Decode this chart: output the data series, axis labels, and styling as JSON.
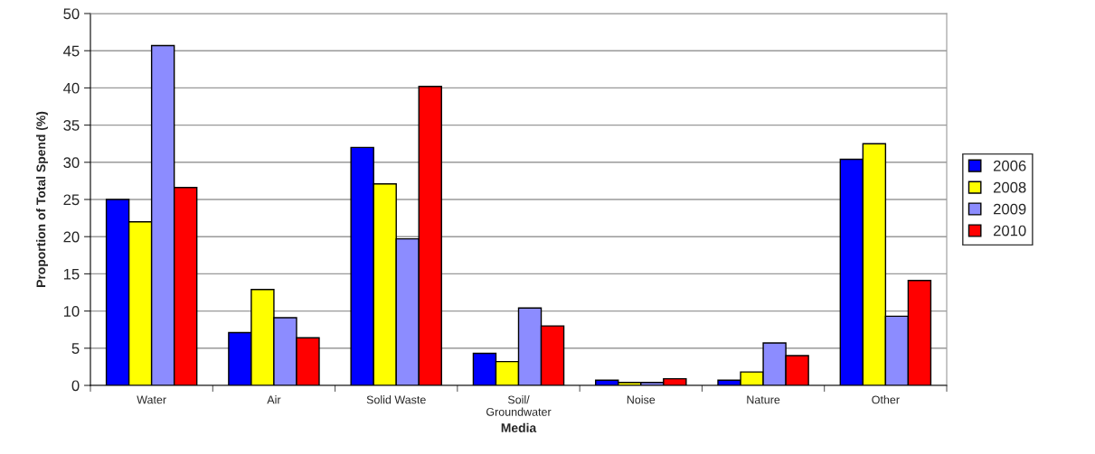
{
  "chart_data": {
    "type": "bar",
    "xlabel": "Media",
    "ylabel": "Proportion of Total Spend (%)",
    "categories": [
      "Water",
      "Air",
      "Solid Waste",
      "Soil/\nGroundwater",
      "Noise",
      "Nature",
      "Other"
    ],
    "series": [
      {
        "name": "2006",
        "color": "#0000ff",
        "values": [
          25,
          7.1,
          32,
          4.3,
          0.7,
          0.7,
          30.4
        ]
      },
      {
        "name": "2008",
        "color": "#ffff00",
        "values": [
          22,
          12.9,
          27.1,
          3.2,
          0.4,
          1.8,
          32.5
        ]
      },
      {
        "name": "2009",
        "color": "#8c8cff",
        "values": [
          45.7,
          9.1,
          19.7,
          10.4,
          0.4,
          5.7,
          9.3
        ]
      },
      {
        "name": "2010",
        "color": "#ff0000",
        "values": [
          26.6,
          6.4,
          40.2,
          8.0,
          0.9,
          4.0,
          14.1
        ]
      }
    ],
    "ylim": [
      0,
      50
    ],
    "yticks": [
      0,
      5,
      10,
      15,
      20,
      25,
      30,
      35,
      40,
      45,
      50
    ],
    "grid": "y",
    "legend": "right"
  }
}
